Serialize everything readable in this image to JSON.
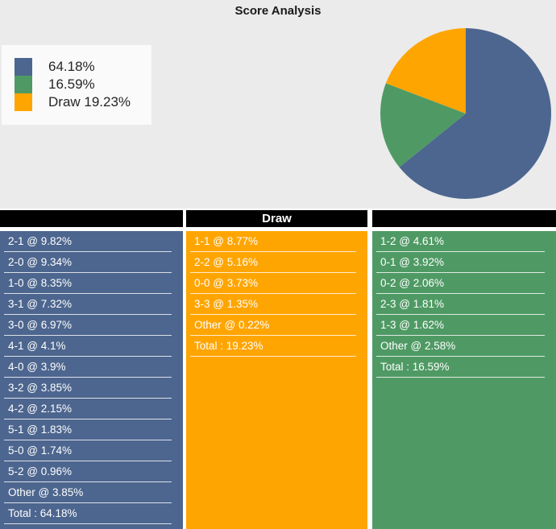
{
  "title": "Score Analysis",
  "colors": {
    "background": "#ebebeb",
    "home_blue": "#4d668f",
    "away_green": "#4f9a64",
    "draw_orange": "#ffa502",
    "header_bar": "#000000",
    "row_text": "#ffffff",
    "legend_bg": "#fafafa"
  },
  "legend": {
    "items": [
      {
        "label": "64.18%",
        "color": "#4d668f"
      },
      {
        "label": "16.59%",
        "color": "#4f9a64"
      },
      {
        "label": "Draw 19.23%",
        "color": "#ffa502"
      }
    ]
  },
  "chart_data": {
    "type": "pie",
    "title": "Score Analysis",
    "start_angle": "12 o'clock",
    "direction": "clockwise",
    "legend_position": "upper-left",
    "slices": [
      {
        "label": "",
        "value": 64.18,
        "color": "#4d668f"
      },
      {
        "label": "",
        "value": 16.59,
        "color": "#4f9a64"
      },
      {
        "label": "Draw",
        "value": 19.23,
        "color": "#ffa502"
      }
    ]
  },
  "score_table": {
    "columns": [
      {
        "header": "",
        "color": "#4d668f",
        "rows": [
          "2-1 @ 9.82%",
          "2-0 @ 9.34%",
          "1-0 @ 8.35%",
          "3-1 @ 7.32%",
          "3-0 @ 6.97%",
          "4-1 @ 4.1%",
          "4-0 @ 3.9%",
          "3-2 @ 3.85%",
          "4-2 @ 2.15%",
          "5-1 @ 1.83%",
          "5-0 @ 1.74%",
          "5-2 @ 0.96%",
          "Other @ 3.85%",
          "Total : 64.18%"
        ]
      },
      {
        "header": "Draw",
        "color": "#ffa502",
        "rows": [
          "1-1 @ 8.77%",
          "2-2 @ 5.16%",
          "0-0 @ 3.73%",
          "3-3 @ 1.35%",
          "Other @ 0.22%",
          "Total : 19.23%"
        ]
      },
      {
        "header": "",
        "color": "#4f9a64",
        "rows": [
          "1-2 @ 4.61%",
          "0-1 @ 3.92%",
          "0-2 @ 2.06%",
          "2-3 @ 1.81%",
          "1-3 @ 1.62%",
          "Other @ 2.58%",
          "Total : 16.59%"
        ]
      }
    ]
  }
}
